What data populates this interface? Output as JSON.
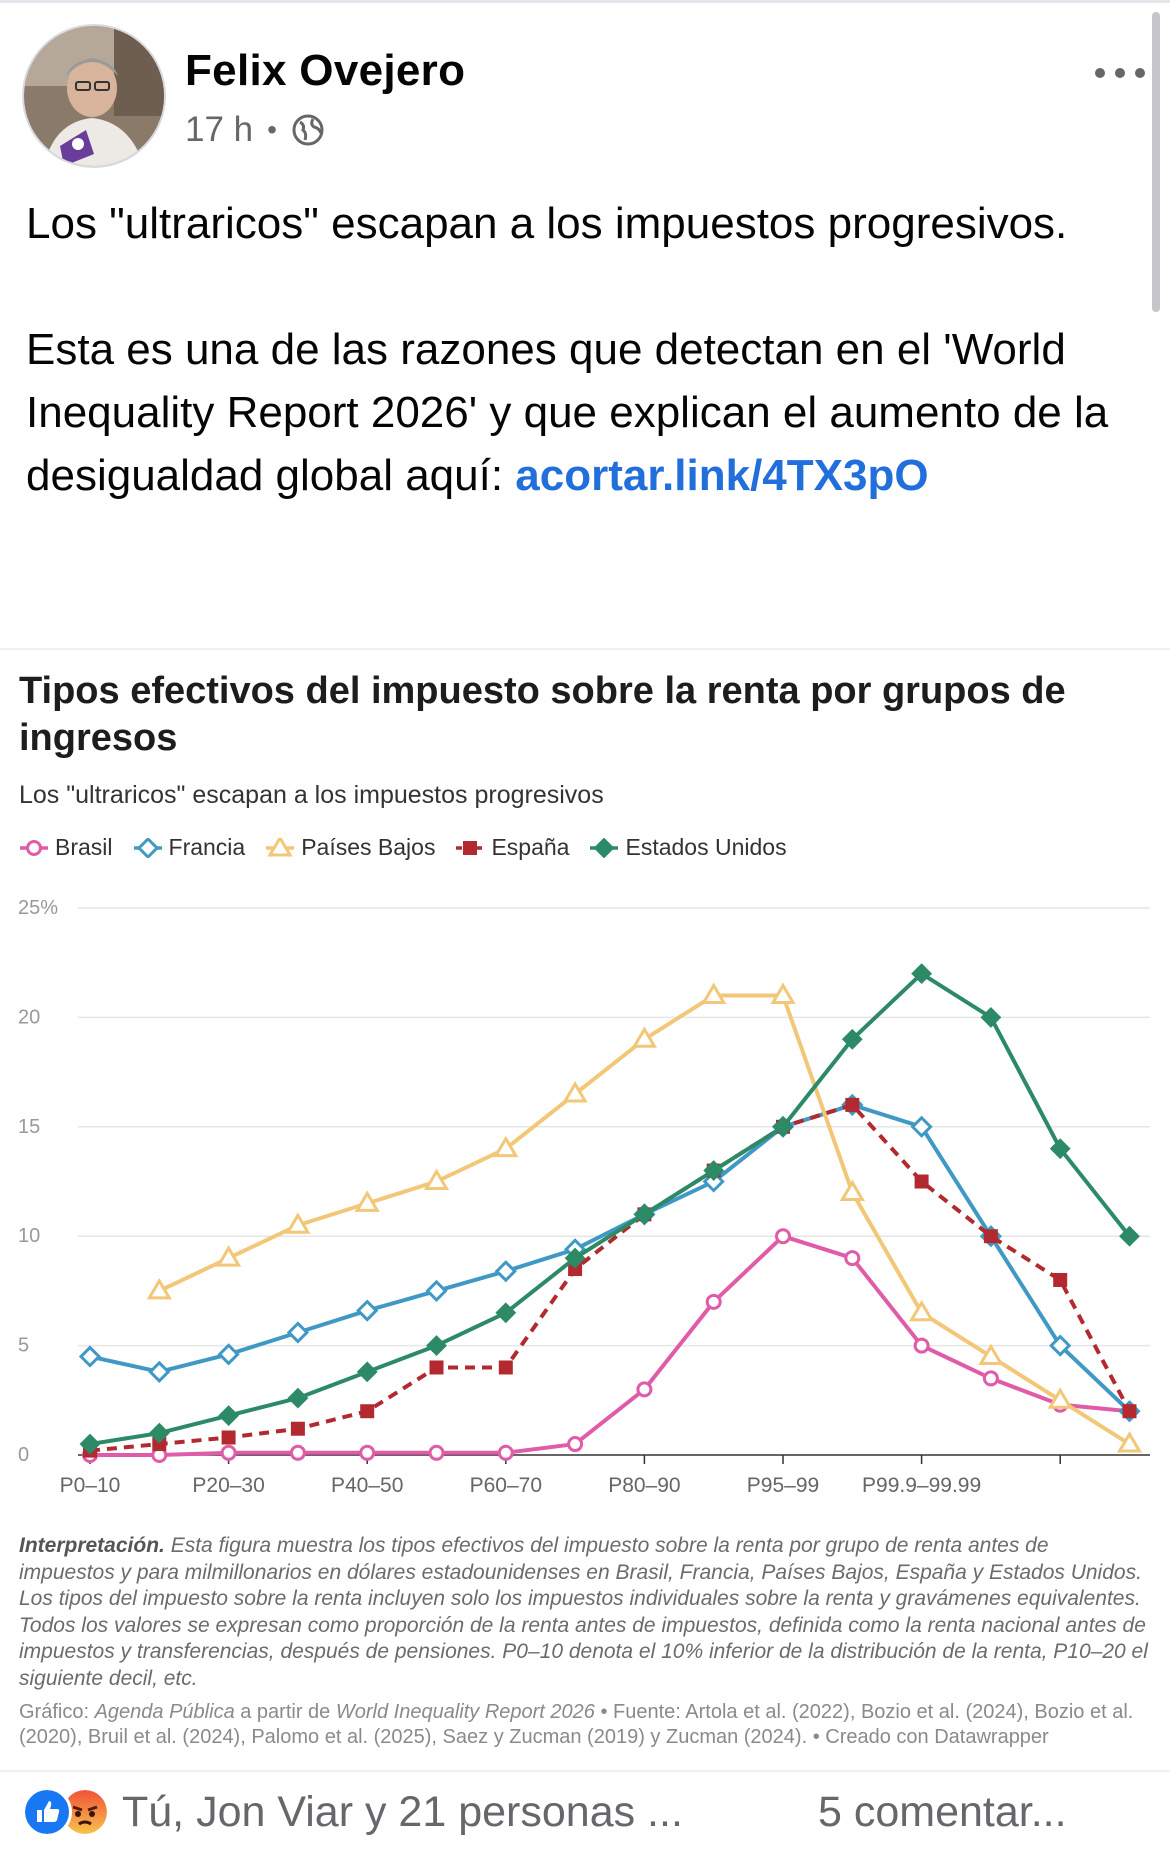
{
  "post": {
    "author": "Felix Ovejero",
    "time": "17 h",
    "separator": "•",
    "privacy_icon": "globe-icon",
    "more_icon": "more-icon",
    "text_line1": "Los \"ultraricos\" escapan a los impuestos progresivos.",
    "text_para2": "Esta es una de las razones que detectan en el 'World Inequality Report 2026' y que explican el aumento de la desigualdad global aquí: ",
    "link_text": "acortar.link/4TX3pO"
  },
  "chart": {
    "title": "Tipos efectivos del impuesto sobre la renta por grupos de ingresos",
    "subtitle": "Los \"ultraricos\" escapan a los impuestos progresivos",
    "notes_label": "Interpretación.",
    "notes_text": " Esta figura muestra los tipos efectivos del impuesto sobre la renta por grupo de renta antes de impuestos y para milmillonarios en dólares estadounidenses en Brasil, Francia, Países Bajos, España y Estados Unidos. Los tipos del impuesto sobre la renta incluyen solo los impuestos individuales sobre la renta y gravámenes equivalentes. Todos los valores se expresan como proporción de la renta antes de impuestos, definida como la renta nacional antes de impuestos y transferencias, después de pensiones. P0–10 denota el 10% inferior de la distribución de la renta, P10–20 el siguiente decil, etc.",
    "source_prefix": "Gráfico: ",
    "source_org": "Agenda Pública",
    "source_mid": " a partir de ",
    "source_report": "World Inequality Report 2026",
    "source_rest": " • Fuente: Artola et al. (2022), Bozio et al. (2024), Bozio et al. (2020), Bruil et al. (2024), Palomo et al. (2025), Saez y Zucman (2019) y Zucman (2024). • Creado con Datawrapper"
  },
  "chart_data": {
    "type": "line",
    "title": "Tipos efectivos del impuesto sobre la renta por grupos de ingresos",
    "subtitle": "Los \"ultraricos\" escapan a los impuestos progresivos",
    "x_ticks_shown": [
      "P0–10",
      "P20–30",
      "P40–50",
      "P60–70",
      "P80–90",
      "P95–99",
      "P99.9–99.99"
    ],
    "y_ticks": [
      "0",
      "5",
      "10",
      "15",
      "20",
      "25%"
    ],
    "ylim": [
      0,
      25
    ],
    "grid": true,
    "legend_position": "top-left",
    "series": [
      {
        "name": "Brasil",
        "color": "#e05ba8",
        "marker": "circle",
        "dash": false,
        "values": [
          0,
          0,
          0.1,
          0.1,
          0.1,
          0.1,
          0.1,
          0.5,
          3,
          7,
          10,
          9,
          5,
          3.5,
          2.3,
          2
        ]
      },
      {
        "name": "Francia",
        "color": "#4099c4",
        "marker": "diamond",
        "dash": false,
        "values": [
          4.5,
          3.8,
          4.6,
          5.6,
          6.6,
          7.5,
          8.4,
          9.4,
          11,
          12.5,
          15,
          16,
          15,
          10,
          5,
          2
        ]
      },
      {
        "name": "Países Bajos",
        "color": "#f2c777",
        "marker": "triangle",
        "dash": false,
        "values": [
          null,
          7.5,
          9,
          10.5,
          11.5,
          12.5,
          14,
          16.5,
          19,
          21,
          21,
          12,
          6.5,
          4.5,
          2.5,
          0.5
        ]
      },
      {
        "name": "España",
        "color": "#b22a2f",
        "marker": "square",
        "dash": true,
        "values": [
          0.2,
          0.5,
          0.8,
          1.2,
          2,
          4,
          4,
          8.5,
          11,
          13,
          15,
          16,
          12.5,
          10,
          8,
          2
        ]
      },
      {
        "name": "Estados Unidos",
        "color": "#2c8a67",
        "marker": "diamond-filled",
        "dash": false,
        "values": [
          0.5,
          1,
          1.8,
          2.6,
          3.8,
          5,
          6.5,
          9,
          11,
          13,
          15,
          19,
          22,
          20,
          14,
          10
        ]
      }
    ]
  },
  "footer": {
    "like_icon": "like-icon",
    "angry_icon": "angry-icon",
    "reactions_text": "Tú, Jon Viar y 21 personas ...",
    "comments_text": "5 comentar..."
  }
}
